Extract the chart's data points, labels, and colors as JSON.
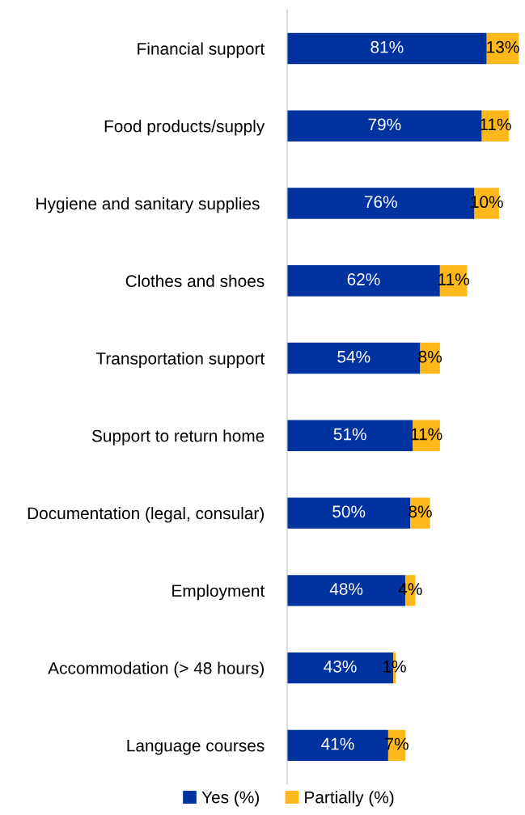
{
  "chart_data": {
    "type": "bar",
    "orientation": "horizontal",
    "stacked": true,
    "legend": "bottom",
    "grid": false,
    "tick_labels": "y",
    "categories": [
      "Financial support",
      "Food products/supply",
      "Hygiene and sanitary supplies ",
      "Clothes and shoes",
      "Transportation support",
      "Support to return home",
      "Documentation (legal, consular)",
      "Employment",
      "Accommodation (> 48 hours)",
      "Language courses"
    ],
    "series": [
      {
        "name": "Yes (%)",
        "color": "#0033a0",
        "values": [
          81,
          79,
          76,
          62,
          54,
          51,
          50,
          48,
          43,
          41
        ],
        "value_labels": [
          "81%",
          "79%",
          "76%",
          "62%",
          "54%",
          "51%",
          "50%",
          "48%",
          "43%",
          "41%"
        ]
      },
      {
        "name": "Partially (%)",
        "color": "#ffb81c",
        "values": [
          13,
          11,
          10,
          11,
          8,
          11,
          8,
          4,
          1,
          7
        ],
        "value_labels": [
          "13%",
          "11%",
          "10%",
          "11%",
          "8%",
          "11%",
          "8%",
          "4%",
          "1%",
          "7%"
        ]
      }
    ]
  }
}
